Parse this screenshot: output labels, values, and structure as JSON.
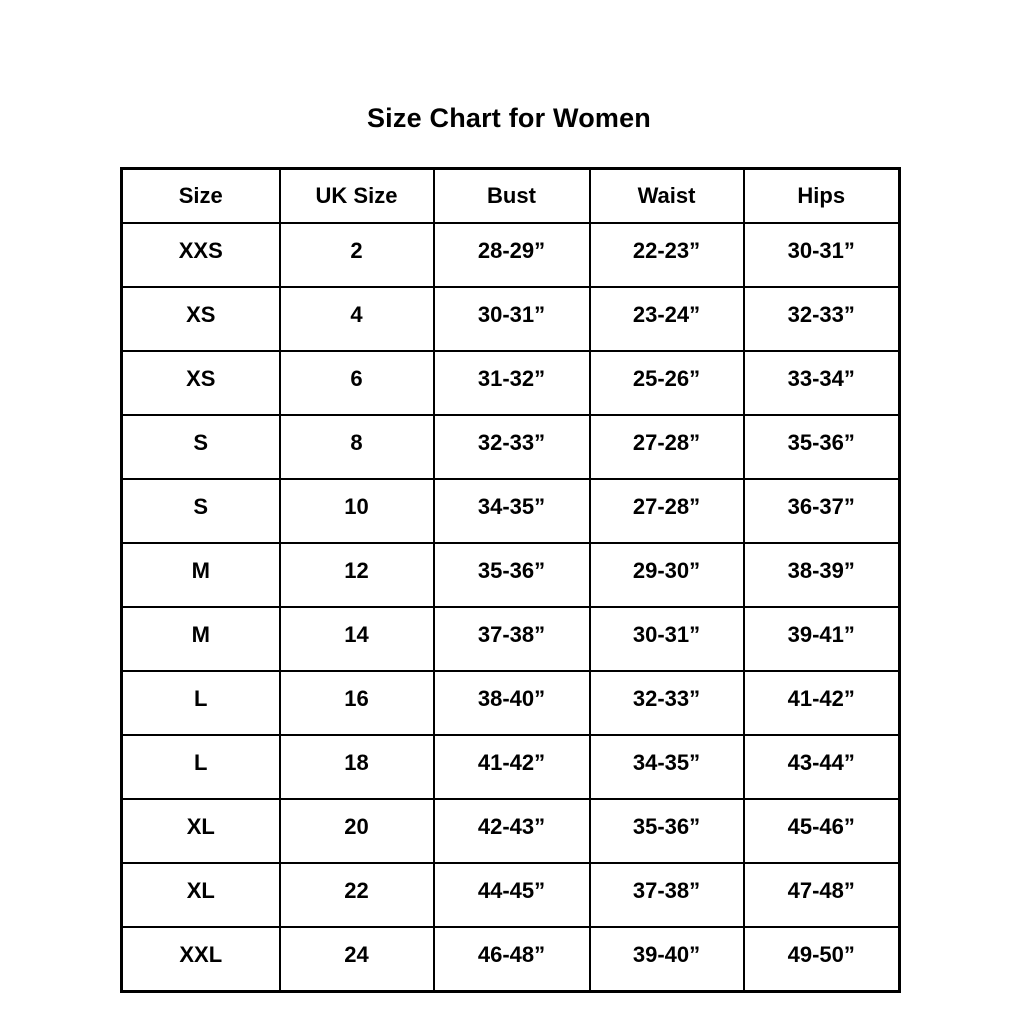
{
  "page": {
    "title": "Size Chart for Women"
  },
  "colors": {
    "background": "#ffffff",
    "border": "#000000",
    "text": "#000000"
  },
  "chart_data": {
    "type": "table",
    "title": "Size Chart for Women",
    "columns": [
      "Size",
      "UK Size",
      "Bust",
      "Waist",
      "Hips"
    ],
    "rows": [
      [
        "XXS",
        "2",
        "28-29”",
        "22-23”",
        "30-31”"
      ],
      [
        "XS",
        "4",
        "30-31”",
        "23-24”",
        "32-33”"
      ],
      [
        "XS",
        "6",
        "31-32”",
        "25-26”",
        "33-34”"
      ],
      [
        "S",
        "8",
        "32-33”",
        "27-28”",
        "35-36”"
      ],
      [
        "S",
        "10",
        "34-35”",
        "27-28”",
        "36-37”"
      ],
      [
        "M",
        "12",
        "35-36”",
        "29-30”",
        "38-39”"
      ],
      [
        "M",
        "14",
        "37-38”",
        "30-31”",
        "39-41”"
      ],
      [
        "L",
        "16",
        "38-40”",
        "32-33”",
        "41-42”"
      ],
      [
        "L",
        "18",
        "41-42”",
        "34-35”",
        "43-44”"
      ],
      [
        "XL",
        "20",
        "42-43”",
        "35-36”",
        "45-46”"
      ],
      [
        "XL",
        "22",
        "44-45”",
        "37-38”",
        "47-48”"
      ],
      [
        "XXL",
        "24",
        "46-48”",
        "39-40”",
        "49-50”"
      ]
    ]
  }
}
